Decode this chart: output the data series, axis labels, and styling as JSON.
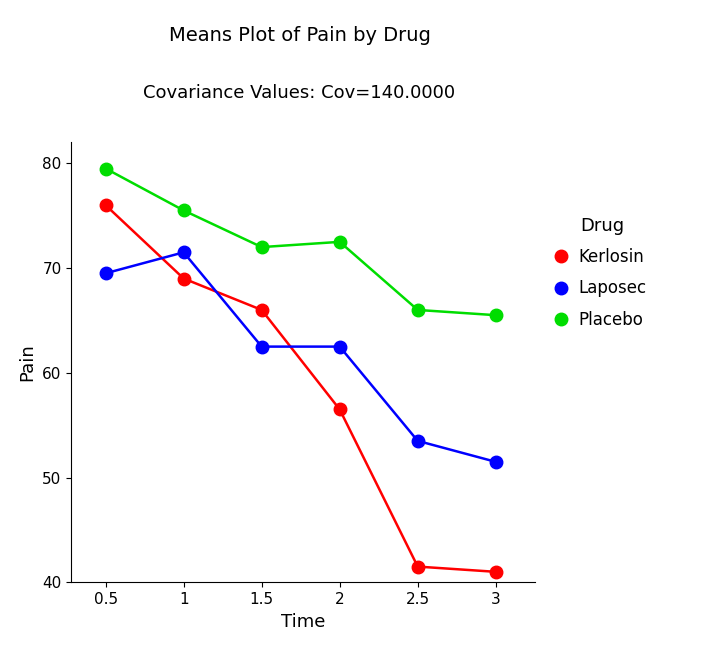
{
  "title": "Means Plot of Pain by Drug",
  "subtitle": "Covariance Values: Cov=140.0000",
  "xlabel": "Time",
  "ylabel": "Pain",
  "xlim": [
    0.28,
    3.25
  ],
  "ylim": [
    40,
    82
  ],
  "yticks": [
    40,
    50,
    60,
    70,
    80
  ],
  "xticks": [
    0.5,
    1.0,
    1.5,
    2.0,
    2.5,
    3.0
  ],
  "xtick_labels": [
    "0.5",
    "1",
    "1.5",
    "2",
    "2.5",
    "3"
  ],
  "series": [
    {
      "label": "Kerlosin",
      "color": "#FF0000",
      "x": [
        0.5,
        1.0,
        1.5,
        2.0,
        2.5,
        3.0
      ],
      "y": [
        76.0,
        69.0,
        66.0,
        56.5,
        41.5,
        41.0
      ]
    },
    {
      "label": "Laposec",
      "color": "#0000FF",
      "x": [
        0.5,
        1.0,
        1.5,
        2.0,
        2.5,
        3.0
      ],
      "y": [
        69.5,
        71.5,
        62.5,
        62.5,
        53.5,
        51.5
      ]
    },
    {
      "label": "Placebo",
      "color": "#00DD00",
      "x": [
        0.5,
        1.0,
        1.5,
        2.0,
        2.5,
        3.0
      ],
      "y": [
        79.5,
        75.5,
        72.0,
        72.5,
        66.0,
        65.5
      ]
    }
  ],
  "legend_title": "Drug",
  "background_color": "#FFFFFF",
  "title_fontsize": 14,
  "subtitle_fontsize": 13,
  "axis_label_fontsize": 13,
  "tick_fontsize": 11,
  "legend_fontsize": 12,
  "legend_title_fontsize": 13,
  "marker": "o",
  "markersize": 9,
  "linewidth": 1.8
}
